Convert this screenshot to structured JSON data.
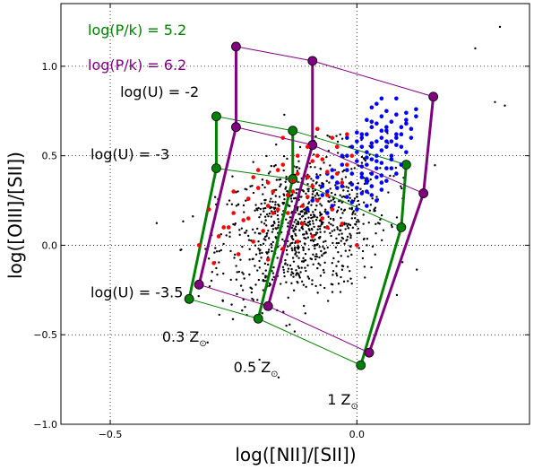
{
  "chart_data": {
    "type": "scatter",
    "xlabel": "log([NII]/[SII])",
    "ylabel": "log([OIII]/[SII])",
    "xlim": [
      -0.6,
      0.35
    ],
    "ylim": [
      -1.0,
      1.35
    ],
    "x_ticks": [
      {
        "value": -0.5,
        "label": "−0.5"
      },
      {
        "value": 0.0,
        "label": "0.0"
      }
    ],
    "y_ticks": [
      {
        "value": -1.0,
        "label": "−1.0"
      },
      {
        "value": -0.5,
        "label": "−0.5"
      },
      {
        "value": 0.0,
        "label": "0.0"
      },
      {
        "value": 0.5,
        "label": "0.5"
      },
      {
        "value": 1.0,
        "label": "1.0"
      }
    ],
    "grid": "dotted at major ticks",
    "legend": [
      {
        "text": "log(P/k) = 5.2",
        "color": "#008000"
      },
      {
        "text": "log(P/k) = 6.2",
        "color": "#800080"
      }
    ],
    "annotations": [
      {
        "text": "log(U) = -2",
        "x": -0.48,
        "y": 0.83
      },
      {
        "text": "log(U) = -3",
        "x": -0.54,
        "y": 0.48
      },
      {
        "text": "log(U) = -3.5",
        "x": -0.54,
        "y": -0.29
      },
      {
        "text": "0.3 Z",
        "sub": "⊙",
        "x": -0.395,
        "y": -0.54
      },
      {
        "text": "0.5 Z",
        "sub": "⊙",
        "x": -0.25,
        "y": -0.71
      },
      {
        "text": "1 Z",
        "sub": "⊙",
        "x": -0.06,
        "y": -0.89
      }
    ],
    "model_grids": [
      {
        "name": "log(P/k) = 5.2",
        "color": "#008000",
        "metallicity_lines": [
          [
            [
              -0.285,
              0.72
            ],
            [
              -0.285,
              0.43
            ],
            [
              -0.34,
              -0.3
            ]
          ],
          [
            [
              -0.13,
              0.64
            ],
            [
              -0.13,
              0.37
            ],
            [
              -0.2,
              -0.41
            ]
          ],
          [
            [
              0.1,
              0.45
            ],
            [
              0.09,
              0.1
            ],
            [
              0.008,
              -0.67
            ]
          ]
        ],
        "u_lines": [
          [
            [
              -0.285,
              0.72
            ],
            [
              -0.13,
              0.64
            ],
            [
              0.1,
              0.45
            ]
          ],
          [
            [
              -0.285,
              0.43
            ],
            [
              -0.13,
              0.37
            ],
            [
              0.09,
              0.1
            ]
          ],
          [
            [
              -0.34,
              -0.3
            ],
            [
              -0.2,
              -0.41
            ],
            [
              0.008,
              -0.67
            ]
          ]
        ]
      },
      {
        "name": "log(P/k) = 6.2",
        "color": "#800080",
        "metallicity_lines": [
          [
            [
              -0.245,
              1.11
            ],
            [
              -0.245,
              0.66
            ],
            [
              -0.32,
              -0.22
            ]
          ],
          [
            [
              -0.09,
              1.03
            ],
            [
              -0.09,
              0.56
            ],
            [
              -0.18,
              -0.34
            ]
          ],
          [
            [
              0.155,
              0.83
            ],
            [
              0.135,
              0.29
            ],
            [
              0.025,
              -0.6
            ]
          ]
        ],
        "u_lines": [
          [
            [
              -0.245,
              1.11
            ],
            [
              -0.09,
              1.03
            ],
            [
              0.155,
              0.83
            ]
          ],
          [
            [
              -0.245,
              0.66
            ],
            [
              -0.09,
              0.56
            ],
            [
              0.135,
              0.29
            ]
          ],
          [
            [
              -0.32,
              -0.22
            ],
            [
              -0.18,
              -0.34
            ],
            [
              0.025,
              -0.6
            ]
          ]
        ]
      }
    ],
    "series": [
      {
        "color": "#0000ff",
        "x": [
          0.04,
          0.05,
          0.06,
          0.02,
          0.08,
          0.03,
          0.07,
          0.01,
          0.09,
          0.05,
          0.0,
          -0.01,
          0.03,
          0.06,
          0.02,
          0.04,
          -0.03,
          0.0,
          0.01,
          0.05,
          -0.02,
          0.03,
          0.07,
          0.04,
          -0.05,
          -0.04,
          0.02,
          0.0,
          0.06,
          0.01,
          -0.06,
          -0.02,
          0.03,
          0.05,
          -0.01,
          0.02,
          0.04,
          0.08,
          0.1,
          0.09,
          0.11,
          0.06,
          0.07,
          0.05,
          0.03,
          0.02,
          -0.01,
          -0.03,
          -0.04,
          -0.07,
          -0.05,
          -0.06,
          0.0,
          0.01,
          0.02,
          0.04,
          0.05,
          0.03,
          0.06,
          0.08,
          0.1,
          0.12,
          0.09,
          0.07,
          -0.02,
          -0.08,
          -0.09,
          -0.1,
          -0.03,
          0.01,
          0.03,
          0.05,
          0.04,
          0.02,
          -0.01,
          0.0,
          0.06,
          0.08,
          0.05,
          0.03,
          -0.04,
          -0.06,
          0.01,
          0.02,
          0.07,
          0.04,
          0.09,
          0.11,
          0.1,
          0.08,
          0.06,
          0.03,
          0.0,
          -0.02,
          0.02,
          0.05,
          0.07,
          -0.05,
          -0.07,
          0.04,
          0.01,
          0.12,
          0.1,
          0.08
        ],
        "y": [
          0.79,
          0.82,
          0.75,
          0.7,
          0.73,
          0.66,
          0.69,
          0.62,
          0.66,
          0.6,
          0.58,
          0.55,
          0.57,
          0.55,
          0.52,
          0.5,
          0.5,
          0.47,
          0.44,
          0.46,
          0.42,
          0.4,
          0.43,
          0.38,
          0.38,
          0.35,
          0.35,
          0.32,
          0.36,
          0.29,
          0.3,
          0.27,
          0.28,
          0.31,
          0.24,
          0.22,
          0.25,
          0.4,
          0.52,
          0.45,
          0.6,
          0.64,
          0.5,
          0.53,
          0.48,
          0.45,
          0.4,
          0.45,
          0.32,
          0.28,
          0.22,
          0.4,
          0.52,
          0.6,
          0.62,
          0.68,
          0.72,
          0.77,
          0.58,
          0.62,
          0.68,
          0.72,
          0.55,
          0.48,
          0.6,
          0.38,
          0.25,
          0.2,
          0.33,
          0.38,
          0.33,
          0.39,
          0.43,
          0.3,
          0.34,
          0.2,
          0.43,
          0.56,
          0.64,
          0.55,
          0.55,
          0.18,
          0.55,
          0.49,
          0.48,
          0.58,
          0.62,
          0.65,
          0.7,
          0.6,
          0.66,
          0.69,
          0.63,
          0.5,
          0.37,
          0.35,
          0.58,
          0.42,
          0.33,
          0.47,
          0.4,
          0.76,
          0.74,
          0.82
        ]
      },
      {
        "color": "#ff0000",
        "x": [
          -0.08,
          -0.05,
          -0.1,
          -0.02,
          -0.12,
          -0.15,
          -0.07,
          -0.2,
          -0.18,
          -0.25,
          -0.22,
          -0.3,
          -0.27,
          -0.12,
          -0.09,
          -0.14,
          -0.04,
          -0.01,
          -0.06,
          -0.11,
          -0.17,
          -0.23,
          -0.28,
          -0.19,
          -0.13,
          -0.16,
          -0.08,
          -0.03,
          -0.1,
          -0.21,
          -0.24,
          -0.26,
          -0.32,
          -0.15,
          -0.07,
          -0.05,
          -0.18,
          -0.2,
          -0.11,
          -0.09,
          -0.02,
          -0.13,
          -0.14,
          -0.06,
          -0.04,
          -0.08,
          -0.17,
          -0.22,
          -0.29,
          -0.12,
          -0.1,
          -0.16,
          -0.25,
          -0.18,
          -0.06,
          -0.03,
          0.0,
          -0.09,
          -0.15,
          -0.21
        ],
        "y": [
          0.65,
          0.6,
          0.55,
          0.62,
          0.5,
          0.45,
          0.48,
          0.42,
          0.35,
          0.3,
          0.26,
          0.2,
          0.1,
          0.4,
          0.33,
          0.28,
          0.55,
          0.5,
          0.41,
          0.22,
          0.18,
          0.14,
          0.05,
          0.08,
          0.3,
          0.2,
          0.25,
          0.35,
          0.38,
          0.02,
          -0.05,
          0.1,
          0.0,
          -0.02,
          0.15,
          0.2,
          0.22,
          0.32,
          0.12,
          0.05,
          0.45,
          0.36,
          0.18,
          0.28,
          0.4,
          0.5,
          0.3,
          0.15,
          -0.1,
          0.02,
          0.27,
          0.42,
          0.18,
          -0.08,
          0.1,
          0.12,
          0.0,
          0.47,
          0.6,
          0.38
        ]
      }
    ]
  }
}
